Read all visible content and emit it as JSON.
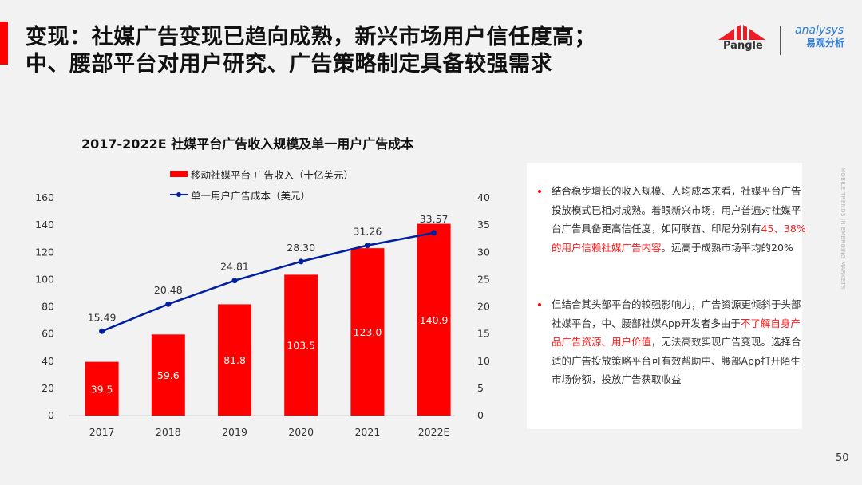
{
  "slide": {
    "title_line1": "变现：社媒广告变现已趋向成熟，新兴市场用户信任度高；",
    "title_line2": "中、腰部平台对用户研究、广告策略制定具备较强需求",
    "page_number": "50",
    "side_text": "MOBILE TRENDS IN EMERGING MARKETS",
    "logos": {
      "pangle": "Pangle",
      "analysys_en": "analysys",
      "analysys_cn": "易观分析"
    },
    "colors": {
      "accent": "#ff0000",
      "line": "#00209f",
      "logo_blue": "#2f7fd6"
    }
  },
  "chart_data": {
    "type": "bar",
    "title": "2017-2022E 社媒平台广告收入规模及单一用户广告成本",
    "categories": [
      "2017",
      "2018",
      "2019",
      "2020",
      "2021",
      "2022E"
    ],
    "series": [
      {
        "name": "移动社媒平台 广告收入（十亿美元）",
        "type": "bar",
        "axis": "left",
        "color": "#ff0000",
        "values": [
          39.5,
          59.6,
          81.8,
          103.5,
          123.0,
          140.9
        ],
        "labels": [
          "39.5",
          "59.6",
          "81.8",
          "103.5",
          "123.0",
          "140.9"
        ]
      },
      {
        "name": "单一用户广告成本（美元）",
        "type": "line",
        "axis": "right",
        "color": "#00209f",
        "values": [
          15.49,
          20.48,
          24.81,
          28.3,
          31.26,
          33.57
        ],
        "labels": [
          "15.49",
          "20.48",
          "24.81",
          "28.30",
          "31.26",
          "33.57"
        ]
      }
    ],
    "y_left": {
      "min": 0,
      "max": 160,
      "ticks": [
        "0",
        "20",
        "40",
        "60",
        "80",
        "100",
        "120",
        "140",
        "160"
      ]
    },
    "y_right": {
      "min": 0,
      "max": 40,
      "ticks": [
        "0",
        "5",
        "10",
        "15",
        "20",
        "25",
        "30",
        "35",
        "40"
      ]
    },
    "xlabel": "",
    "ylabel": "",
    "grid": false,
    "legend_position": "top-center"
  },
  "panel": {
    "bullets": [
      {
        "segments": [
          {
            "text": "结合稳步增长的收入规模、人均成本来看，社媒平台广告投放模式已相对成熟。着眼新兴市场，用户普遍对社媒平台广告具备更高信任度，如阿联酋、印尼分别有",
            "highlight": false
          },
          {
            "text": "45、38%的用户信赖社媒广告内容",
            "highlight": true
          },
          {
            "text": "。远高于成熟市场平均的20%",
            "highlight": false
          }
        ]
      },
      {
        "segments": [
          {
            "text": "但结合其头部平台的较强影响力，广告资源更倾斜于头部社媒平台，中、腰部社媒App开发者多由于",
            "highlight": false
          },
          {
            "text": "不了解自身产品广告资源、用户价值",
            "highlight": true
          },
          {
            "text": "，无法高效实现广告变现。选择合适的广告投放策略平台可有效帮助中、腰部App打开陌生市场份额，投放广告获取收益",
            "highlight": false
          }
        ]
      }
    ]
  }
}
